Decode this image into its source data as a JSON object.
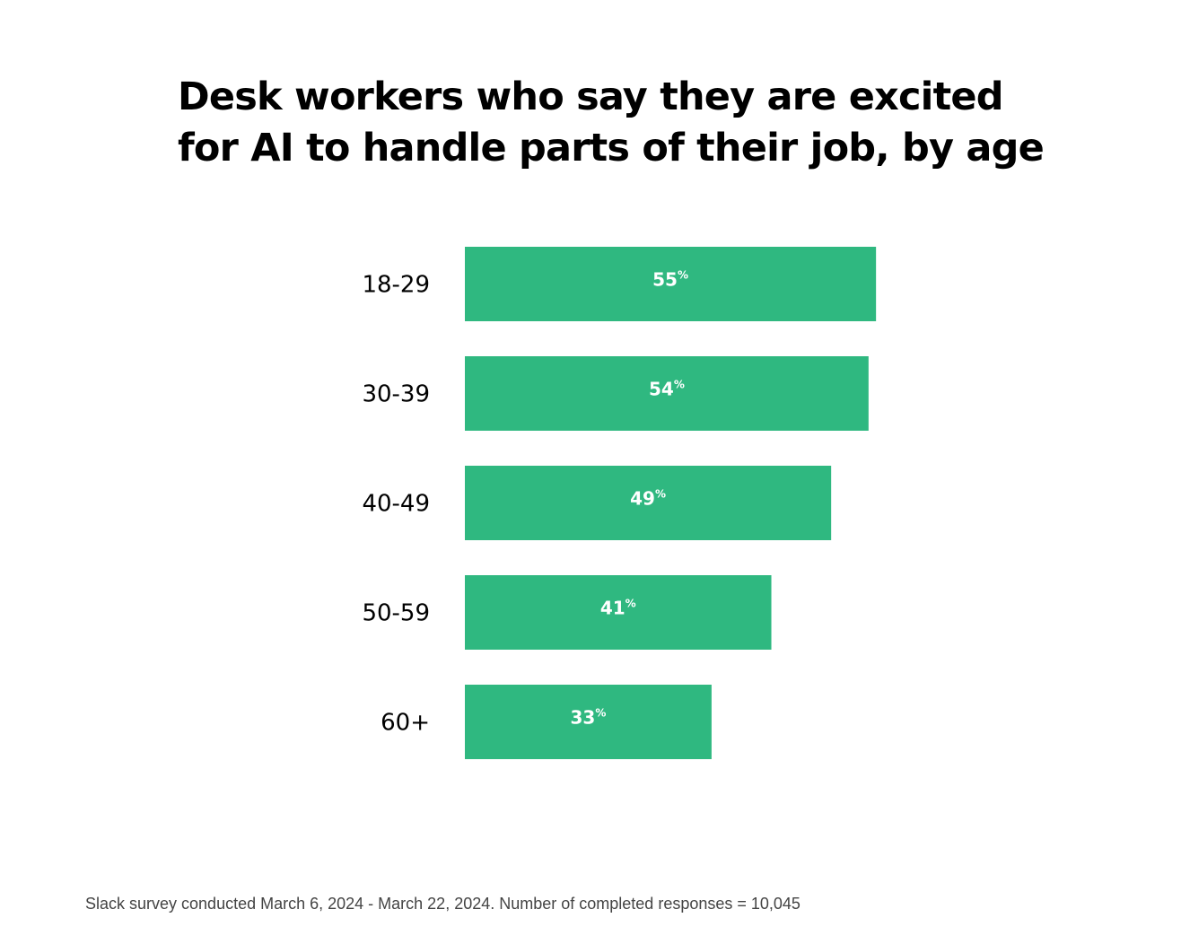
{
  "title_lines": [
    "Desk workers who say they are excited",
    "for AI to handle parts of their job, by age"
  ],
  "footnote": "Slack survey conducted March 6, 2024 - March 22, 2024. Number of completed responses = 10,045",
  "colors": {
    "bar": "#2fb880",
    "bar_label": "#ffffff",
    "category_label": "#000000"
  },
  "chart_data": {
    "type": "bar",
    "orientation": "horizontal",
    "title": "Desk workers who say they are excited for AI to handle parts of their job, by age",
    "categories": [
      "18-29",
      "30-39",
      "40-49",
      "50-59",
      "60+"
    ],
    "values": [
      55,
      54,
      49,
      41,
      33
    ],
    "value_suffix": "%",
    "xlim": [
      0,
      100
    ],
    "grid": false,
    "legend": "none"
  }
}
